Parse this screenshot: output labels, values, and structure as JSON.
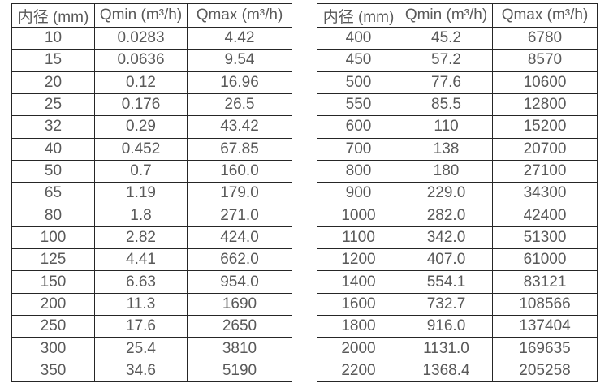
{
  "colors": {
    "background": "#ffffff",
    "border": "#262626",
    "text": "#595959"
  },
  "tables": {
    "left": {
      "headers": [
        "内径 (mm)",
        "Qmin (m³/h)",
        "Qmax (m³/h)"
      ],
      "rows": [
        [
          "10",
          "0.0283",
          "4.42"
        ],
        [
          "15",
          "0.0636",
          "9.54"
        ],
        [
          "20",
          "0.12",
          "16.96"
        ],
        [
          "25",
          "0.176",
          "26.5"
        ],
        [
          "32",
          "0.29",
          "43.42"
        ],
        [
          "40",
          "0.452",
          "67.85"
        ],
        [
          "50",
          "0.7",
          "160.0"
        ],
        [
          "65",
          "1.19",
          "179.0"
        ],
        [
          "80",
          "1.8",
          "271.0"
        ],
        [
          "100",
          "2.82",
          "424.0"
        ],
        [
          "125",
          "4.41",
          "662.0"
        ],
        [
          "150",
          "6.63",
          "954.0"
        ],
        [
          "200",
          "11.3",
          "1690"
        ],
        [
          "250",
          "17.6",
          "2650"
        ],
        [
          "300",
          "25.4",
          "3810"
        ],
        [
          "350",
          "34.6",
          "5190"
        ]
      ]
    },
    "right": {
      "headers": [
        "内径 (mm)",
        "Qmin (m³/h)",
        "Qmax (m³/h)"
      ],
      "rows": [
        [
          "400",
          "45.2",
          "6780"
        ],
        [
          "450",
          "57.2",
          "8570"
        ],
        [
          "500",
          "77.6",
          "10600"
        ],
        [
          "550",
          "85.5",
          "12800"
        ],
        [
          "600",
          "110",
          "15200"
        ],
        [
          "700",
          "138",
          "20700"
        ],
        [
          "800",
          "180",
          "27100"
        ],
        [
          "900",
          "229.0",
          "34300"
        ],
        [
          "1000",
          "282.0",
          "42400"
        ],
        [
          "1100",
          "342.0",
          "51300"
        ],
        [
          "1200",
          "407.0",
          "61000"
        ],
        [
          "1400",
          "554.1",
          "83121"
        ],
        [
          "1600",
          "732.7",
          "108566"
        ],
        [
          "1800",
          "916.0",
          "137404"
        ],
        [
          "2000",
          "1131.0",
          "169635"
        ],
        [
          "2200",
          "1368.4",
          "205258"
        ]
      ]
    }
  }
}
